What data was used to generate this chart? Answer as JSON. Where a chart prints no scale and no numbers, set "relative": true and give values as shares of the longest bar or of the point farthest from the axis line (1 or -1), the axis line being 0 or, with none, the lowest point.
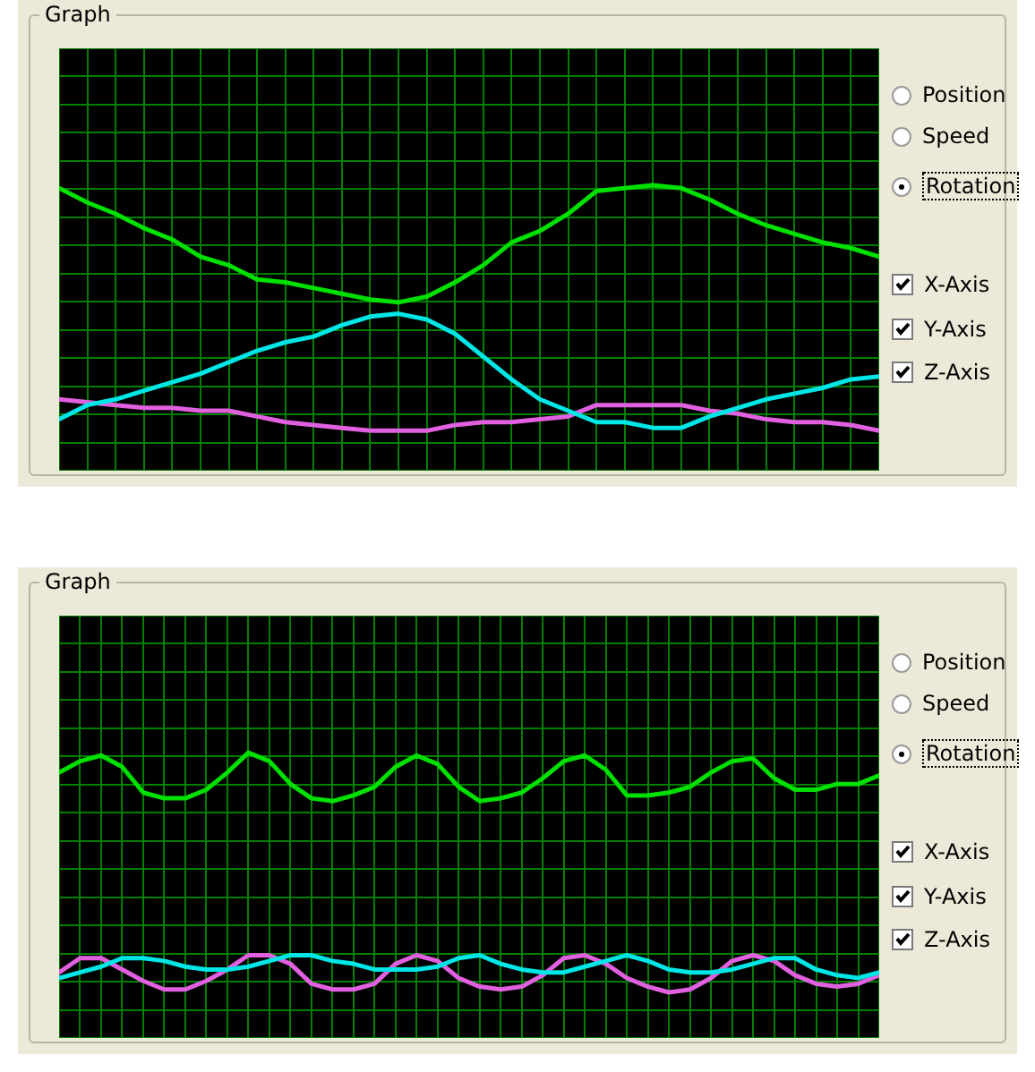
{
  "chart_data": [
    {
      "type": "line",
      "title": "Graph",
      "relative": true,
      "grid": true,
      "legend": false,
      "marker": "none",
      "line_style": "solid",
      "categories": [
        null,
        null,
        null,
        null,
        null,
        null,
        null,
        null,
        null,
        null,
        null,
        null,
        null,
        null,
        null,
        null,
        null,
        null,
        null,
        null,
        null,
        null,
        null,
        null,
        null,
        null,
        null,
        null,
        null,
        null
      ],
      "series": [
        {
          "color": "#00e000",
          "values": [
            0.99,
            0.94,
            0.9,
            0.85,
            0.81,
            0.75,
            0.72,
            0.67,
            0.66,
            0.64,
            0.62,
            0.6,
            0.59,
            0.61,
            0.66,
            0.72,
            0.8,
            0.84,
            0.9,
            0.98,
            0.99,
            1.0,
            0.99,
            0.95,
            0.9,
            0.86,
            0.83,
            0.8,
            0.78,
            0.75
          ]
        },
        {
          "color": "#00e5e5",
          "values": [
            0.18,
            0.23,
            0.25,
            0.28,
            0.31,
            0.34,
            0.38,
            0.42,
            0.45,
            0.47,
            0.51,
            0.54,
            0.55,
            0.53,
            0.48,
            0.4,
            0.32,
            0.25,
            0.21,
            0.17,
            0.17,
            0.15,
            0.15,
            0.19,
            0.22,
            0.25,
            0.27,
            0.29,
            0.32,
            0.33
          ]
        },
        {
          "color": "#e060e0",
          "values": [
            0.25,
            0.24,
            0.23,
            0.22,
            0.22,
            0.21,
            0.21,
            0.19,
            0.17,
            0.16,
            0.15,
            0.14,
            0.14,
            0.14,
            0.16,
            0.17,
            0.17,
            0.18,
            0.19,
            0.23,
            0.23,
            0.23,
            0.23,
            0.21,
            0.2,
            0.18,
            0.17,
            0.17,
            0.16,
            0.14
          ]
        }
      ],
      "annotations": [
        "Position",
        "Speed",
        "Rotation",
        "X-Axis",
        "Y-Axis",
        "Z-Axis"
      ]
    },
    {
      "type": "line",
      "title": "Graph",
      "relative": true,
      "grid": true,
      "legend": false,
      "marker": "none",
      "line_style": "solid",
      "categories": [
        null,
        null,
        null,
        null,
        null,
        null,
        null,
        null,
        null,
        null,
        null,
        null,
        null,
        null,
        null,
        null,
        null,
        null,
        null,
        null,
        null,
        null,
        null,
        null,
        null,
        null,
        null,
        null,
        null,
        null,
        null,
        null,
        null,
        null,
        null,
        null,
        null,
        null,
        null,
        null
      ],
      "series": [
        {
          "color": "#00e000",
          "values": [
            0.93,
            0.97,
            0.99,
            0.95,
            0.86,
            0.84,
            0.84,
            0.87,
            0.93,
            1.0,
            0.97,
            0.89,
            0.84,
            0.83,
            0.85,
            0.88,
            0.95,
            0.99,
            0.96,
            0.88,
            0.83,
            0.84,
            0.86,
            0.91,
            0.97,
            0.99,
            0.94,
            0.85,
            0.85,
            0.86,
            0.88,
            0.93,
            0.97,
            0.98,
            0.91,
            0.87,
            0.87,
            0.89,
            0.89,
            0.92
          ]
        },
        {
          "color": "#00e5e5",
          "values": [
            0.21,
            0.23,
            0.25,
            0.28,
            0.28,
            0.27,
            0.25,
            0.24,
            0.24,
            0.25,
            0.27,
            0.29,
            0.29,
            0.27,
            0.26,
            0.24,
            0.24,
            0.24,
            0.25,
            0.28,
            0.29,
            0.26,
            0.24,
            0.23,
            0.23,
            0.25,
            0.27,
            0.29,
            0.27,
            0.24,
            0.23,
            0.23,
            0.24,
            0.26,
            0.28,
            0.28,
            0.24,
            0.22,
            0.21,
            0.23
          ]
        },
        {
          "color": "#e060e0",
          "values": [
            0.23,
            0.28,
            0.28,
            0.24,
            0.2,
            0.17,
            0.17,
            0.2,
            0.24,
            0.29,
            0.29,
            0.26,
            0.19,
            0.17,
            0.17,
            0.19,
            0.26,
            0.29,
            0.27,
            0.21,
            0.18,
            0.17,
            0.18,
            0.22,
            0.28,
            0.29,
            0.26,
            0.21,
            0.18,
            0.16,
            0.17,
            0.21,
            0.27,
            0.29,
            0.27,
            0.22,
            0.19,
            0.18,
            0.19,
            0.22
          ]
        }
      ],
      "annotations": [
        "Position",
        "Speed",
        "Rotation",
        "X-Axis",
        "Y-Axis",
        "Z-Axis"
      ]
    }
  ]
}
